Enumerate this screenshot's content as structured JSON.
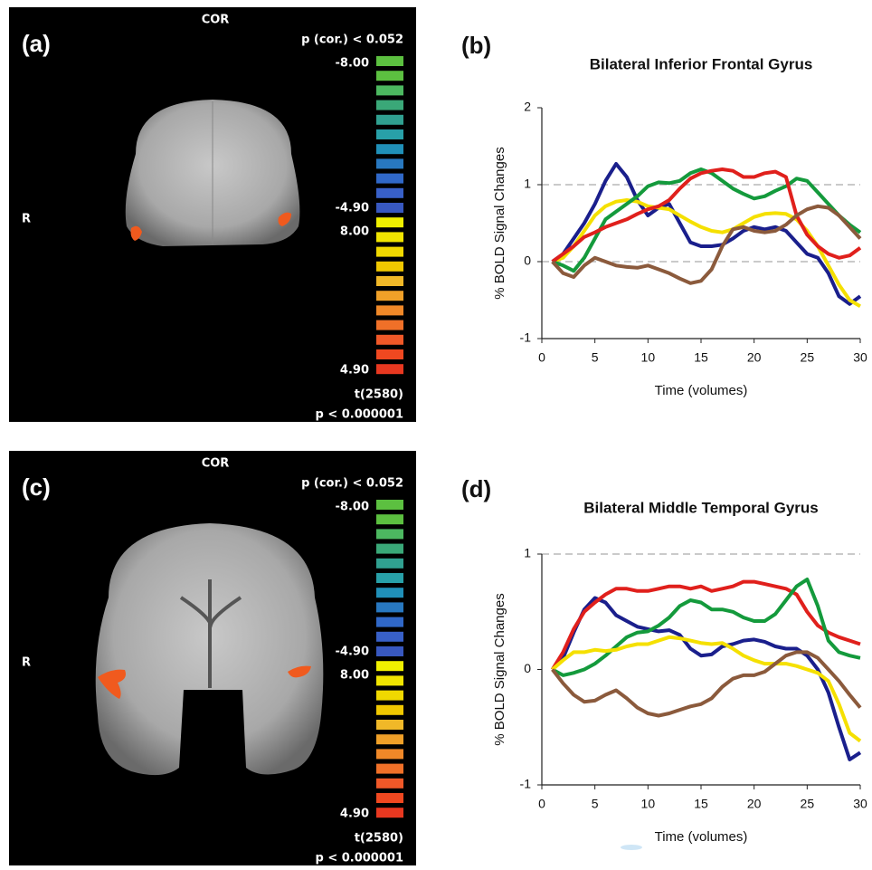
{
  "panels": [
    {
      "panel_label": "(a)",
      "view": "COR",
      "threshold": "p (cor.) < 0.052",
      "side": "R",
      "scale_labels": [
        "-8.00",
        "-4.90",
        "8.00",
        "4.90"
      ],
      "statistic": "t(2580)",
      "p_value": "p < 0.000001"
    },
    {
      "panel_label": "(c)",
      "view": "COR",
      "threshold": "p (cor.) < 0.052",
      "side": "R",
      "scale_labels": [
        "-8.00",
        "-4.90",
        "8.00",
        "4.90"
      ],
      "statistic": "t(2580)",
      "p_value": "p < 0.000001"
    }
  ],
  "colorbar_colors": [
    "#5cc040",
    "#5cc040",
    "#4cb860",
    "#3aa878",
    "#30a090",
    "#28a0a8",
    "#2090b8",
    "#2878c0",
    "#3068c8",
    "#3860c8",
    "#3858c0",
    "#f0f000",
    "#f0e400",
    "#f0d800",
    "#f0c800",
    "#f0b828",
    "#f0a028",
    "#f08828",
    "#f07028",
    "#f05828",
    "#f04820",
    "#e83820"
  ],
  "chart_data": [
    {
      "type": "line",
      "panel_label": "(b)",
      "title": "Bilateral Inferior Frontal Gyrus",
      "x_label": "Time (volumes)",
      "y_label": "% BOLD Signal Changes",
      "xlim": [
        0,
        30
      ],
      "xticks": [
        0,
        5,
        10,
        15,
        20,
        25,
        30
      ],
      "ylim": [
        -1,
        2
      ],
      "yticks": [
        -1,
        0,
        1,
        2
      ],
      "reference_lines": [
        0,
        1
      ],
      "x": [
        1,
        2,
        3,
        4,
        5,
        6,
        7,
        8,
        9,
        10,
        11,
        12,
        13,
        14,
        15,
        16,
        17,
        18,
        19,
        20,
        21,
        22,
        23,
        24,
        25,
        26,
        27,
        28,
        29,
        30
      ],
      "series": [
        {
          "color": "#1a1f8c",
          "values": [
            0,
            0.1,
            0.3,
            0.5,
            0.75,
            1.05,
            1.27,
            1.1,
            0.8,
            0.6,
            0.7,
            0.75,
            0.5,
            0.25,
            0.2,
            0.2,
            0.22,
            0.3,
            0.4,
            0.45,
            0.42,
            0.45,
            0.4,
            0.25,
            0.1,
            0.05,
            -0.15,
            -0.45,
            -0.55,
            -0.45
          ]
        },
        {
          "color": "#f5e000",
          "values": [
            0,
            0.05,
            0.2,
            0.4,
            0.6,
            0.72,
            0.78,
            0.8,
            0.78,
            0.72,
            0.7,
            0.68,
            0.6,
            0.52,
            0.45,
            0.4,
            0.38,
            0.42,
            0.5,
            0.58,
            0.62,
            0.63,
            0.62,
            0.55,
            0.4,
            0.2,
            -0.05,
            -0.3,
            -0.5,
            -0.58
          ]
        },
        {
          "color": "#149a3c",
          "values": [
            0,
            -0.05,
            -0.12,
            0.05,
            0.3,
            0.55,
            0.65,
            0.75,
            0.85,
            0.98,
            1.03,
            1.02,
            1.05,
            1.15,
            1.2,
            1.15,
            1.05,
            0.95,
            0.88,
            0.82,
            0.85,
            0.92,
            0.98,
            1.08,
            1.05,
            0.9,
            0.75,
            0.6,
            0.48,
            0.38
          ]
        },
        {
          "color": "#e0201c",
          "values": [
            0,
            0.1,
            0.2,
            0.32,
            0.38,
            0.45,
            0.5,
            0.55,
            0.62,
            0.68,
            0.72,
            0.8,
            0.95,
            1.08,
            1.15,
            1.18,
            1.2,
            1.18,
            1.1,
            1.1,
            1.15,
            1.17,
            1.1,
            0.6,
            0.35,
            0.2,
            0.1,
            0.05,
            0.08,
            0.18
          ]
        },
        {
          "color": "#8b5a3c",
          "values": [
            0,
            -0.15,
            -0.2,
            -0.05,
            0.05,
            0,
            -0.05,
            -0.07,
            -0.08,
            -0.05,
            -0.1,
            -0.15,
            -0.22,
            -0.28,
            -0.25,
            -0.1,
            0.2,
            0.42,
            0.45,
            0.4,
            0.38,
            0.4,
            0.48,
            0.6,
            0.68,
            0.72,
            0.7,
            0.6,
            0.45,
            0.3
          ]
        }
      ]
    },
    {
      "type": "line",
      "panel_label": "(d)",
      "title": "Bilateral Middle Temporal Gyrus",
      "x_label": "Time (volumes)",
      "y_label": "% BOLD Signal Changes",
      "xlim": [
        0,
        30
      ],
      "xticks": [
        0,
        5,
        10,
        15,
        20,
        25,
        30
      ],
      "ylim": [
        -1,
        1
      ],
      "yticks": [
        -1,
        0,
        1
      ],
      "reference_lines": [
        1
      ],
      "x": [
        1,
        2,
        3,
        4,
        5,
        6,
        7,
        8,
        9,
        10,
        11,
        12,
        13,
        14,
        15,
        16,
        17,
        18,
        19,
        20,
        21,
        22,
        23,
        24,
        25,
        26,
        27,
        28,
        29,
        30
      ],
      "series": [
        {
          "color": "#1a1f8c",
          "values": [
            0,
            0.1,
            0.32,
            0.52,
            0.62,
            0.58,
            0.47,
            0.42,
            0.37,
            0.35,
            0.33,
            0.34,
            0.3,
            0.18,
            0.12,
            0.13,
            0.2,
            0.22,
            0.25,
            0.26,
            0.24,
            0.2,
            0.18,
            0.18,
            0.12,
            0,
            -0.2,
            -0.5,
            -0.78,
            -0.72
          ]
        },
        {
          "color": "#e0201c",
          "values": [
            0,
            0.15,
            0.35,
            0.5,
            0.58,
            0.65,
            0.7,
            0.7,
            0.68,
            0.68,
            0.7,
            0.72,
            0.72,
            0.7,
            0.72,
            0.68,
            0.7,
            0.72,
            0.76,
            0.76,
            0.74,
            0.72,
            0.7,
            0.65,
            0.5,
            0.38,
            0.32,
            0.28,
            0.25,
            0.22
          ]
        },
        {
          "color": "#149a3c",
          "values": [
            0,
            -0.05,
            -0.03,
            0,
            0.05,
            0.12,
            0.2,
            0.28,
            0.32,
            0.33,
            0.38,
            0.45,
            0.55,
            0.6,
            0.58,
            0.52,
            0.52,
            0.5,
            0.45,
            0.42,
            0.42,
            0.48,
            0.6,
            0.72,
            0.78,
            0.55,
            0.25,
            0.15,
            0.12,
            0.1
          ]
        },
        {
          "color": "#f5e000",
          "values": [
            0,
            0.08,
            0.15,
            0.15,
            0.17,
            0.16,
            0.17,
            0.2,
            0.22,
            0.22,
            0.25,
            0.28,
            0.27,
            0.25,
            0.23,
            0.22,
            0.23,
            0.18,
            0.12,
            0.08,
            0.05,
            0.05,
            0.05,
            0.03,
            0,
            -0.03,
            -0.1,
            -0.3,
            -0.55,
            -0.62
          ]
        },
        {
          "color": "#8b5a3c",
          "values": [
            0,
            -0.12,
            -0.22,
            -0.28,
            -0.27,
            -0.22,
            -0.18,
            -0.25,
            -0.33,
            -0.38,
            -0.4,
            -0.38,
            -0.35,
            -0.32,
            -0.3,
            -0.25,
            -0.15,
            -0.08,
            -0.05,
            -0.05,
            -0.02,
            0.05,
            0.12,
            0.15,
            0.15,
            0.1,
            0,
            -0.1,
            -0.22,
            -0.33
          ]
        }
      ]
    }
  ]
}
